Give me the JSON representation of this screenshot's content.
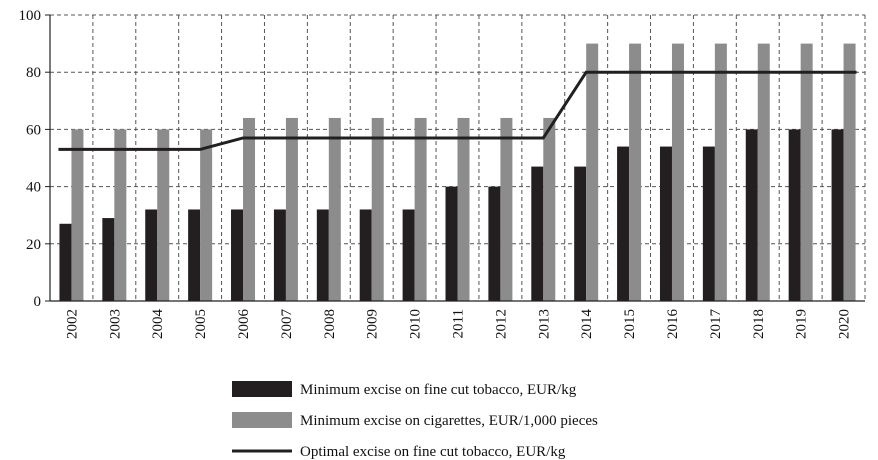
{
  "chart_data": {
    "type": "bar",
    "categories": [
      "2002",
      "2003",
      "2004",
      "2005",
      "2006",
      "2007",
      "2008",
      "2009",
      "2010",
      "2011",
      "2012",
      "2013",
      "2014",
      "2015",
      "2016",
      "2017",
      "2018",
      "2019",
      "2020"
    ],
    "series": [
      {
        "name": "Minimum excise on fine cut tobacco, EUR/kg",
        "kind": "bar",
        "color": "#231f20",
        "values": [
          27,
          29,
          32,
          32,
          32,
          32,
          32,
          32,
          32,
          40,
          40,
          47,
          47,
          54,
          54,
          54,
          60,
          60,
          60
        ]
      },
      {
        "name": "Minimum excise on cigarettes, EUR/1,000 pieces",
        "kind": "bar",
        "color": "#8c8c8c",
        "values": [
          60,
          60,
          60,
          60,
          64,
          64,
          64,
          64,
          64,
          64,
          64,
          64,
          90,
          90,
          90,
          90,
          90,
          90,
          90
        ]
      },
      {
        "name": "Optimal excise on fine cut tobacco, EUR/kg",
        "kind": "line",
        "color": "#231f20",
        "values": [
          53,
          53,
          53,
          53,
          57,
          57,
          57,
          57,
          57,
          57,
          57,
          57,
          80,
          80,
          80,
          80,
          80,
          80,
          80
        ]
      }
    ],
    "yticks": [
      0,
      20,
      40,
      60,
      80,
      100
    ],
    "ylim": [
      0,
      100
    ],
    "grid": true,
    "legend_position": "bottom"
  }
}
